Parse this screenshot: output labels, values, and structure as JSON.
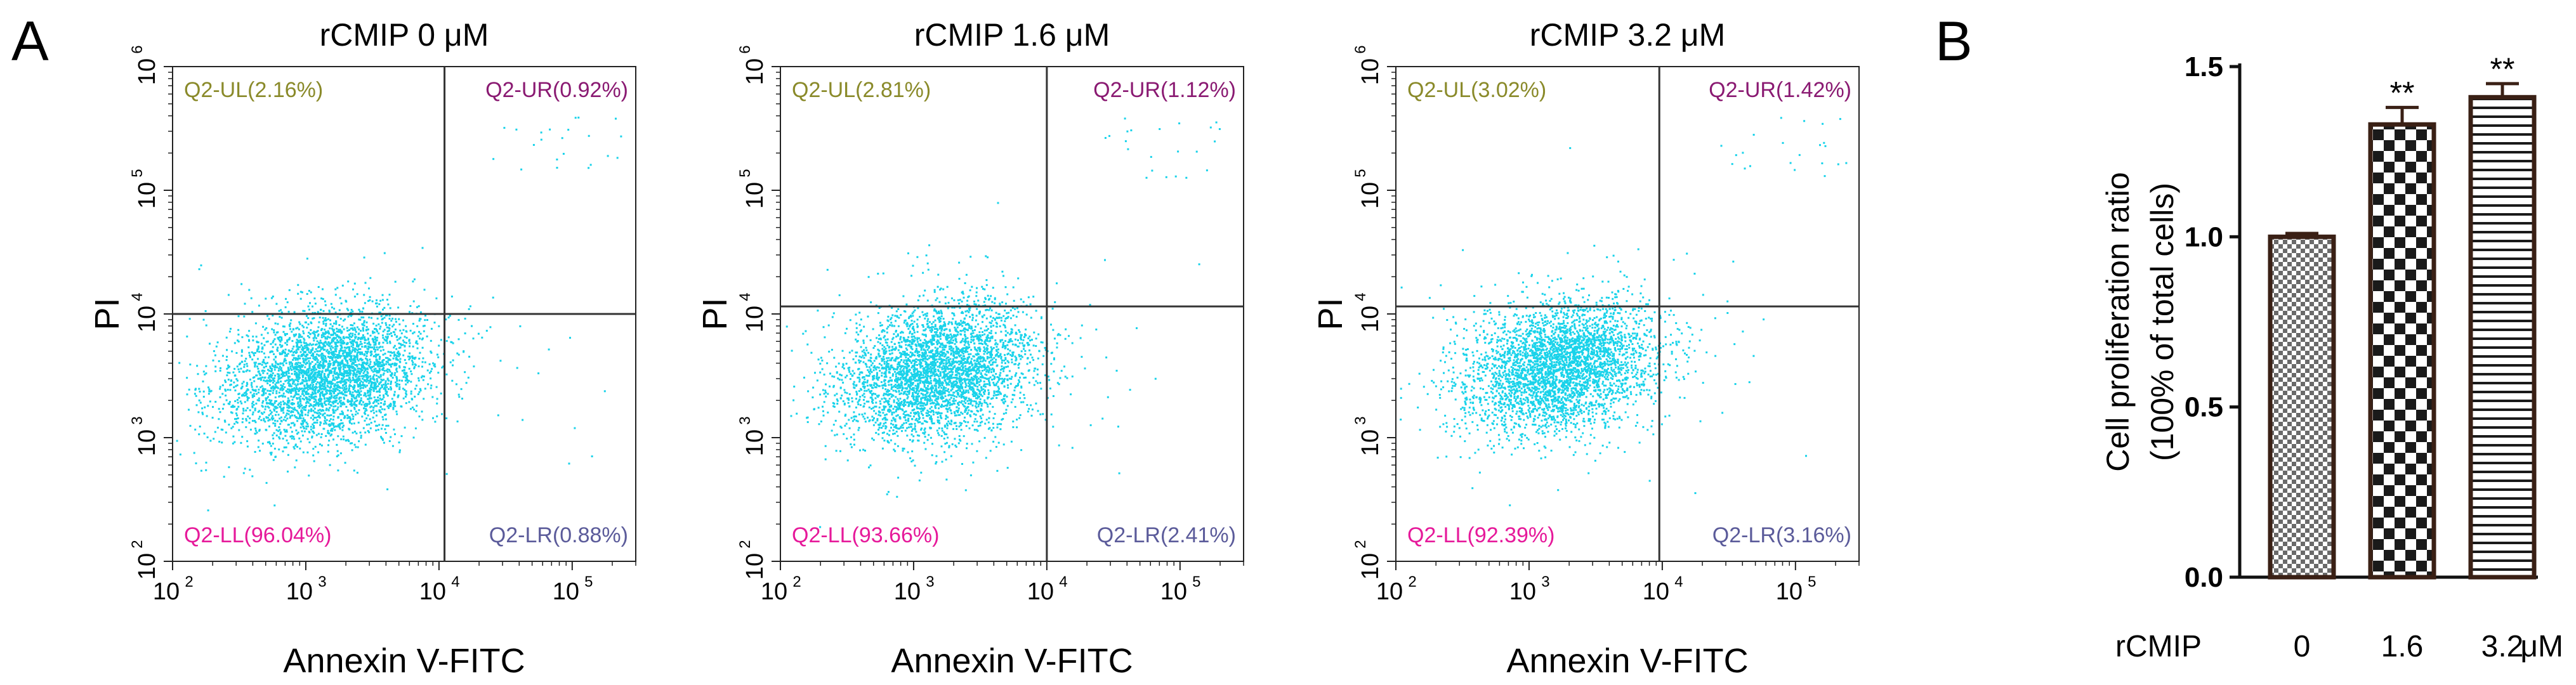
{
  "panel_labels": {
    "a": "A",
    "b": "B"
  },
  "colors": {
    "dots": "#19d3ea",
    "ul": "#8a8a2a",
    "ur": "#8a1a72",
    "ll": "#e6199a",
    "lr": "#5b5b9a",
    "axis": "#000000",
    "bar_edge": "#3a2015"
  },
  "chart_data": [
    {
      "type": "scatter",
      "title": "rCMIP 0 μM",
      "xlabel": "Annexin V-FITC",
      "ylabel": "PI",
      "xscale": "log",
      "yscale": "log",
      "xlim": [
        100,
        300000
      ],
      "ylim": [
        100,
        1000000
      ],
      "x_ticks": [
        "10",
        "10",
        "10",
        "10"
      ],
      "x_tick_exp": [
        "2",
        "3",
        "4",
        "5"
      ],
      "y_ticks": [
        "10",
        "10",
        "10",
        "10",
        "10"
      ],
      "y_tick_exp": [
        "2",
        "3",
        "4",
        "5",
        "6"
      ],
      "gate": {
        "x": 11000,
        "y": 10000
      },
      "quadrants": {
        "ul": "Q2-UL(2.16%)",
        "ur": "Q2-UR(0.92%)",
        "ll": "Q2-LL(96.04%)",
        "lr": "Q2-LR(0.88%)"
      },
      "population": {
        "center_x": 1400,
        "center_y": 3200,
        "spread_x_decades": 0.38,
        "spread_y_decades": 0.26
      }
    },
    {
      "type": "scatter",
      "title": "rCMIP 1.6 μM",
      "xlabel": "Annexin V-FITC",
      "ylabel": "PI",
      "xscale": "log",
      "yscale": "log",
      "xlim": [
        100,
        300000
      ],
      "ylim": [
        100,
        1000000
      ],
      "x_ticks": [
        "10",
        "10",
        "10",
        "10"
      ],
      "x_tick_exp": [
        "2",
        "3",
        "4",
        "5"
      ],
      "y_ticks": [
        "10",
        "10",
        "10",
        "10",
        "10"
      ],
      "y_tick_exp": [
        "2",
        "3",
        "4",
        "5",
        "6"
      ],
      "gate": {
        "x": 10000,
        "y": 11500
      },
      "quadrants": {
        "ul": "Q2-UL(2.81%)",
        "ur": "Q2-UR(1.12%)",
        "ll": "Q2-LL(93.66%)",
        "lr": "Q2-LR(2.41%)"
      },
      "population": {
        "center_x": 1500,
        "center_y": 3500,
        "spread_x_decades": 0.36,
        "spread_y_decades": 0.27
      }
    },
    {
      "type": "scatter",
      "title": "rCMIP 3.2 μM",
      "xlabel": "Annexin V-FITC",
      "ylabel": "PI",
      "xscale": "log",
      "yscale": "log",
      "xlim": [
        100,
        300000
      ],
      "ylim": [
        100,
        1000000
      ],
      "x_ticks": [
        "10",
        "10",
        "10",
        "10"
      ],
      "x_tick_exp": [
        "2",
        "3",
        "4",
        "5"
      ],
      "y_ticks": [
        "10",
        "10",
        "10",
        "10",
        "10"
      ],
      "y_tick_exp": [
        "2",
        "3",
        "4",
        "5",
        "6"
      ],
      "gate": {
        "x": 9500,
        "y": 11500
      },
      "quadrants": {
        "ul": "Q2-UL(3.02%)",
        "ur": "Q2-UR(1.42%)",
        "ll": "Q2-LL(92.39%)",
        "lr": "Q2-LR(3.16%)"
      },
      "population": {
        "center_x": 1700,
        "center_y": 3800,
        "spread_x_decades": 0.36,
        "spread_y_decades": 0.26
      }
    },
    {
      "type": "bar",
      "xlabel": "rCMIP",
      "x_unit": "μM",
      "ylabel": "Cell proliferation ratio",
      "ylabel2": "(100% of total cells)",
      "ylim": [
        0,
        1.5
      ],
      "y_ticks": [
        "0.0",
        "0.5",
        "1.0",
        "1.5"
      ],
      "categories": [
        "0",
        "1.6",
        "3.2"
      ],
      "values": [
        1.0,
        1.33,
        1.41
      ],
      "errors": [
        0.01,
        0.05,
        0.04
      ],
      "significance": [
        "",
        "**",
        "**"
      ],
      "patterns": [
        "fine-grid",
        "checkerboard",
        "horizontal-lines"
      ]
    }
  ]
}
